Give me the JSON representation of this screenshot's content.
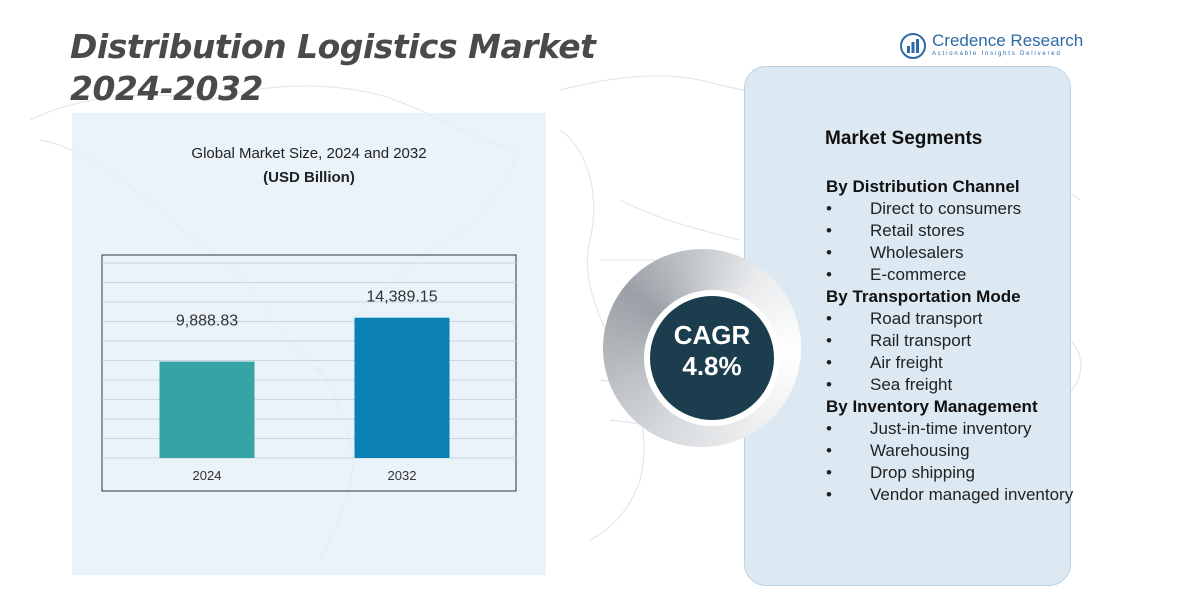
{
  "title_line1": "Distribution Logistics Market",
  "title_line2": "2024-2032",
  "logo": {
    "name": "Credence Research",
    "tagline": "Actionable Insights Delivered",
    "icon": "credence-logo-icon"
  },
  "chart_heading": {
    "line1": "Global Market Size, 2024 and 2032",
    "line2": "(USD Billion)"
  },
  "chart_data": {
    "type": "bar",
    "categories": [
      "2024",
      "2032"
    ],
    "values": [
      9888.83,
      14389.15
    ],
    "value_labels": [
      "9,888.83",
      "14,389.15"
    ],
    "title": "Global Market Size, 2024 and 2032",
    "ylabel": "(USD Billion)",
    "ylim": [
      0,
      20000
    ],
    "grid": true,
    "colors": [
      "#35a4a4",
      "#0a80b4"
    ]
  },
  "cagr": {
    "label": "CAGR",
    "value": "4.8%"
  },
  "segments": {
    "title": "Market Segments",
    "groups": [
      {
        "title": "By Distribution Channel",
        "items": [
          "Direct to consumers",
          "Retail stores",
          "Wholesalers",
          "E-commerce"
        ]
      },
      {
        "title": "By Transportation Mode",
        "items": [
          "Road transport",
          "Rail transport",
          "Air freight",
          "Sea freight"
        ]
      },
      {
        "title": "By Inventory Management",
        "items": [
          "Just-in-time inventory",
          "Warehousing",
          "Drop shipping",
          "Vendor managed inventory"
        ]
      }
    ],
    "bullet": "•"
  },
  "colors": {
    "title": "#4a4a4a",
    "brand": "#2d6aa6",
    "cagr_circle": "#1b3d4e",
    "panel": "#dce9f3"
  }
}
